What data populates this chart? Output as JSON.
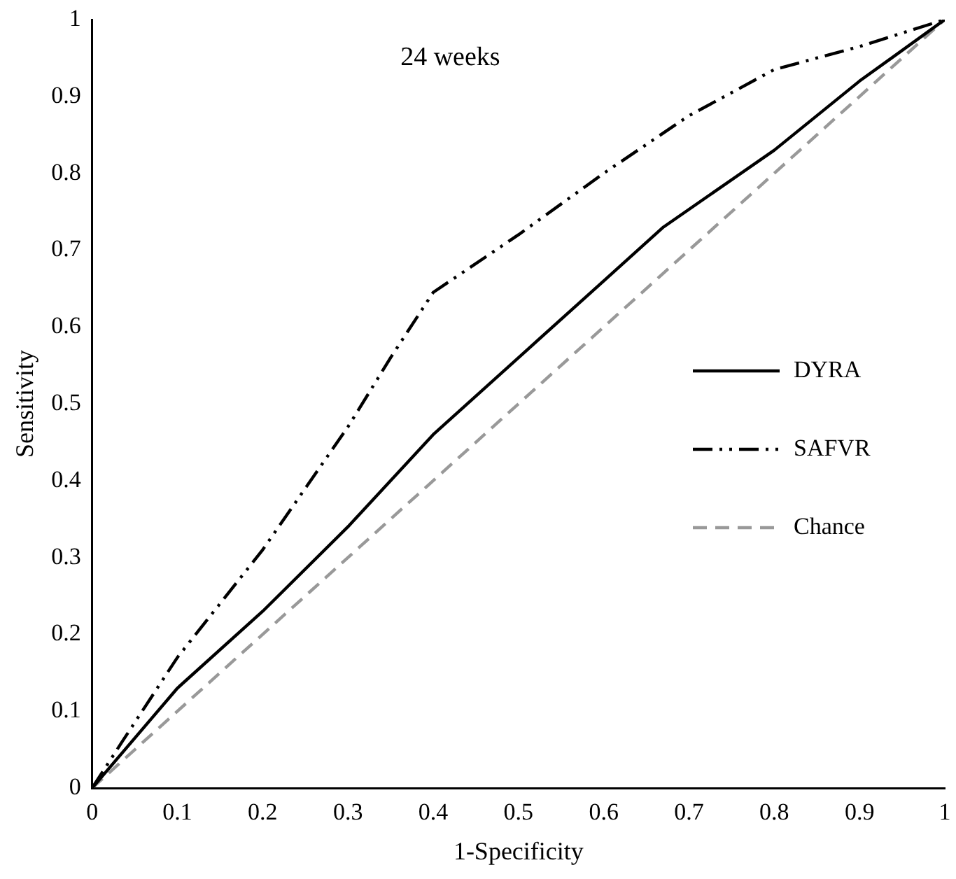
{
  "chart_data": {
    "type": "line",
    "title": "24 weeks",
    "xlabel": "1-Specificity",
    "ylabel": "Sensitivity",
    "xlim": [
      0,
      1
    ],
    "ylim": [
      0,
      1
    ],
    "xticks": [
      0,
      0.1,
      0.2,
      0.3,
      0.4,
      0.5,
      0.6,
      0.7,
      0.8,
      0.9,
      1
    ],
    "yticks": [
      0,
      0.1,
      0.2,
      0.3,
      0.4,
      0.5,
      0.6,
      0.7,
      0.8,
      0.9,
      1
    ],
    "grid": false,
    "legend": "bottom right",
    "marker": "none",
    "series": [
      {
        "name": "DYRA",
        "color": "#000000",
        "line_style": "solid",
        "x": [
          0,
          0.1,
          0.2,
          0.3,
          0.4,
          0.5,
          0.6,
          0.67,
          0.8,
          0.9,
          1
        ],
        "values": [
          0,
          0.13,
          0.23,
          0.34,
          0.46,
          0.56,
          0.66,
          0.73,
          0.83,
          0.92,
          1
        ]
      },
      {
        "name": "SAFVR",
        "color": "#000000",
        "line_style": "dashdot",
        "x": [
          0,
          0.035,
          0.1,
          0.2,
          0.3,
          0.35,
          0.4,
          0.5,
          0.6,
          0.7,
          0.8,
          0.9,
          1
        ],
        "values": [
          0,
          0.06,
          0.17,
          0.31,
          0.47,
          0.56,
          0.645,
          0.72,
          0.8,
          0.875,
          0.935,
          0.965,
          1
        ]
      },
      {
        "name": "Chance",
        "color": "#999999",
        "line_style": "dashed",
        "x": [
          0,
          1
        ],
        "values": [
          0,
          1
        ]
      }
    ]
  }
}
